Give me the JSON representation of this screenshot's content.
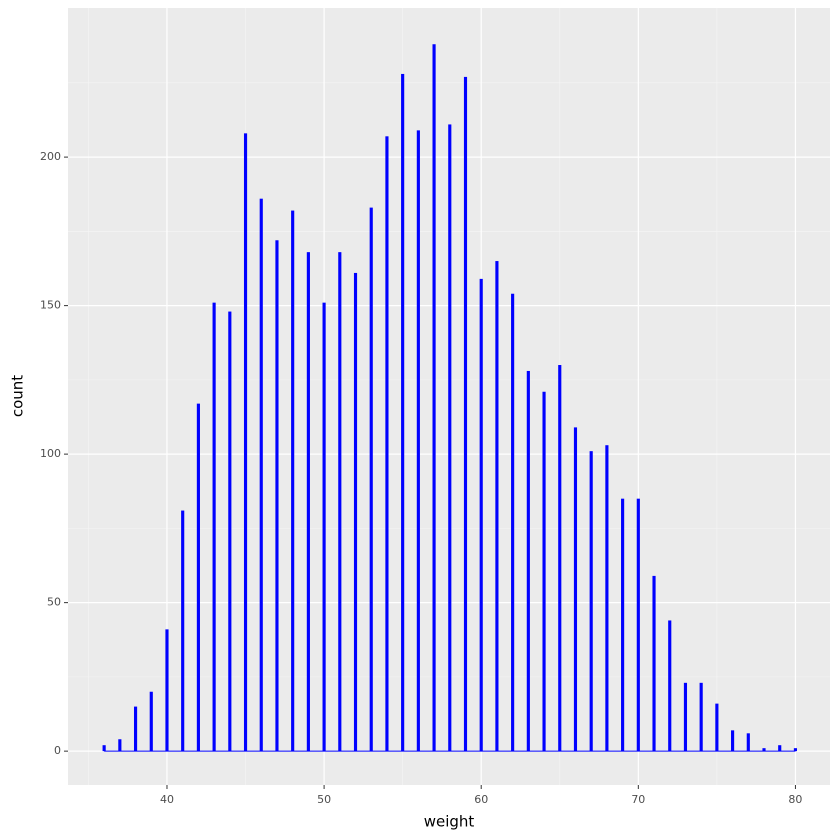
{
  "chart_data": {
    "type": "bar",
    "x_label": "weight",
    "y_label": "count",
    "x": [
      36,
      37,
      38,
      39,
      40,
      41,
      42,
      43,
      44,
      45,
      46,
      47,
      48,
      49,
      50,
      51,
      52,
      53,
      54,
      55,
      56,
      57,
      58,
      59,
      60,
      61,
      62,
      63,
      64,
      65,
      66,
      67,
      68,
      69,
      70,
      71,
      72,
      73,
      74,
      75,
      76,
      77,
      78,
      79,
      80
    ],
    "values": [
      2,
      4,
      15,
      20,
      41,
      81,
      117,
      151,
      148,
      208,
      186,
      172,
      182,
      168,
      151,
      168,
      161,
      183,
      207,
      228,
      209,
      238,
      211,
      227,
      159,
      165,
      154,
      128,
      121,
      130,
      109,
      101,
      103,
      85,
      85,
      59,
      44,
      23,
      23,
      16,
      7,
      6,
      1,
      2,
      1
    ],
    "color": "#0000ff",
    "xlim": [
      33.7,
      82.2
    ],
    "xticks": [
      40,
      50,
      60,
      70,
      80
    ],
    "xminor": [
      35,
      45,
      55,
      65,
      75
    ],
    "ylim": [
      -11.4,
      250.2
    ],
    "yticks": [
      0,
      50,
      100,
      150,
      200
    ],
    "yminor": [
      25,
      75,
      125,
      175,
      225
    ],
    "grid": true
  }
}
